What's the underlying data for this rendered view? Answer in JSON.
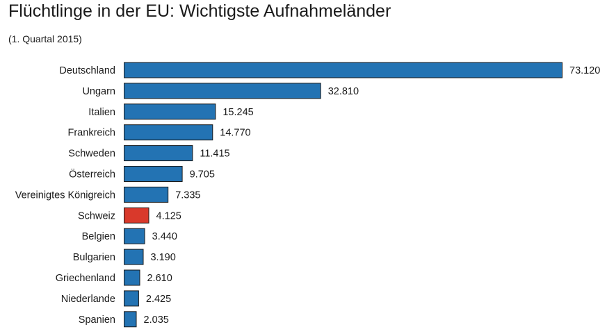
{
  "colors": {
    "bar_default": "#2373b3",
    "bar_highlight": "#d9392b",
    "bar_stroke": "#1a1a1a"
  },
  "chart_data": {
    "type": "bar",
    "orientation": "horizontal",
    "title": "Flüchtlinge in der EU: Wichtigste Aufnahmeländer",
    "subtitle": "(1. Quartal 2015)",
    "xlabel": "",
    "ylabel": "",
    "xlim": [
      0,
      73120
    ],
    "grid": false,
    "legend": "none",
    "highlight_category": "Schweiz",
    "categories": [
      "Deutschland",
      "Ungarn",
      "Italien",
      "Frankreich",
      "Schweden",
      "Österreich",
      "Vereinigtes Königreich",
      "Schweiz",
      "Belgien",
      "Bulgarien",
      "Griechenland",
      "Niederlande",
      "Spanien"
    ],
    "values": [
      73120,
      32810,
      15245,
      14770,
      11415,
      9705,
      7335,
      4125,
      3440,
      3190,
      2610,
      2425,
      2035
    ],
    "value_labels": [
      "73.120",
      "32.810",
      "15.245",
      "14.770",
      "11.415",
      "9.705",
      "7.335",
      "4.125",
      "3.440",
      "3.190",
      "2.610",
      "2.425",
      "2.035"
    ]
  }
}
